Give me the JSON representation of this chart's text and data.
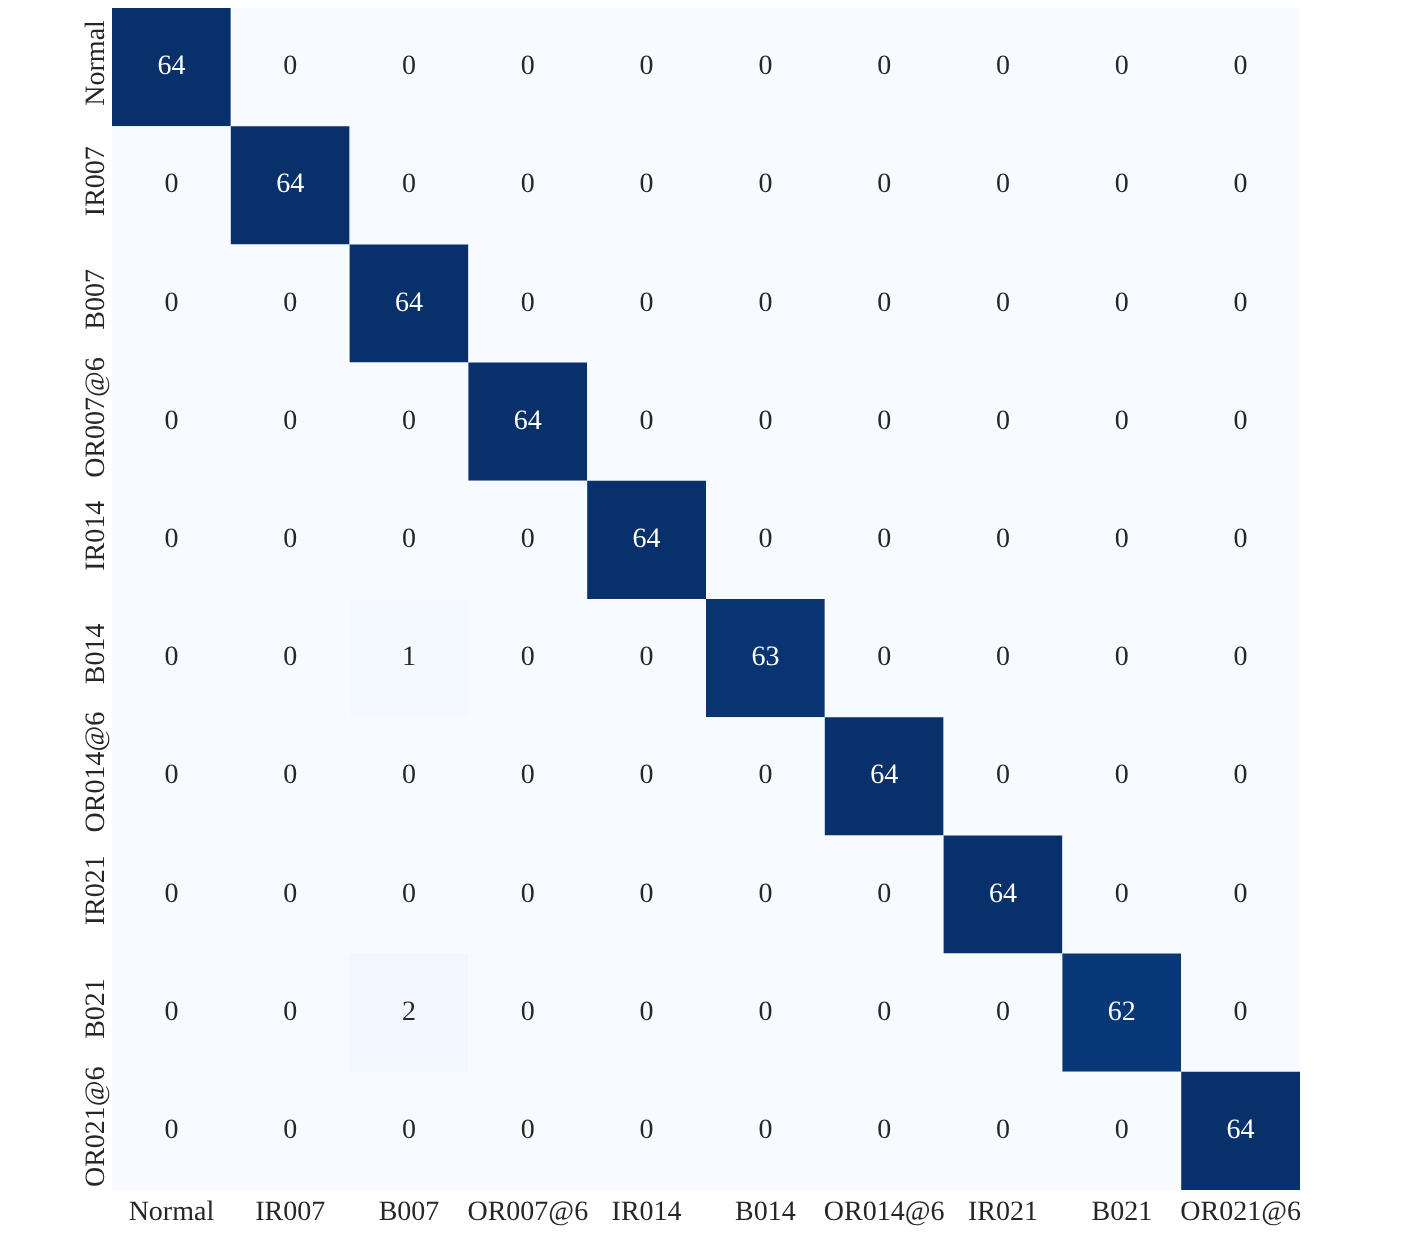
{
  "chart_data": {
    "type": "heatmap",
    "categories": [
      "Normal",
      "IR007",
      "B007",
      "OR007@6",
      "IR014",
      "B014",
      "OR014@6",
      "IR021",
      "B021",
      "OR021@6"
    ],
    "y_categories": [
      "Normal",
      "IR007",
      "B007",
      "OR007@6",
      "IR014",
      "B014",
      "OR014@6",
      "IR021",
      "B021",
      "OR021@6"
    ],
    "cells": [
      [
        64,
        0,
        0,
        0,
        0,
        0,
        0,
        0,
        0,
        0
      ],
      [
        0,
        64,
        0,
        0,
        0,
        0,
        0,
        0,
        0,
        0
      ],
      [
        0,
        0,
        64,
        0,
        0,
        0,
        0,
        0,
        0,
        0
      ],
      [
        0,
        0,
        0,
        64,
        0,
        0,
        0,
        0,
        0,
        0
      ],
      [
        0,
        0,
        0,
        0,
        64,
        0,
        0,
        0,
        0,
        0
      ],
      [
        0,
        0,
        1,
        0,
        0,
        63,
        0,
        0,
        0,
        0
      ],
      [
        0,
        0,
        0,
        0,
        0,
        0,
        64,
        0,
        0,
        0
      ],
      [
        0,
        0,
        0,
        0,
        0,
        0,
        0,
        64,
        0,
        0
      ],
      [
        0,
        0,
        2,
        0,
        0,
        0,
        0,
        0,
        62,
        0
      ],
      [
        0,
        0,
        0,
        0,
        0,
        0,
        0,
        0,
        0,
        64
      ]
    ],
    "data_labels": true
  }
}
